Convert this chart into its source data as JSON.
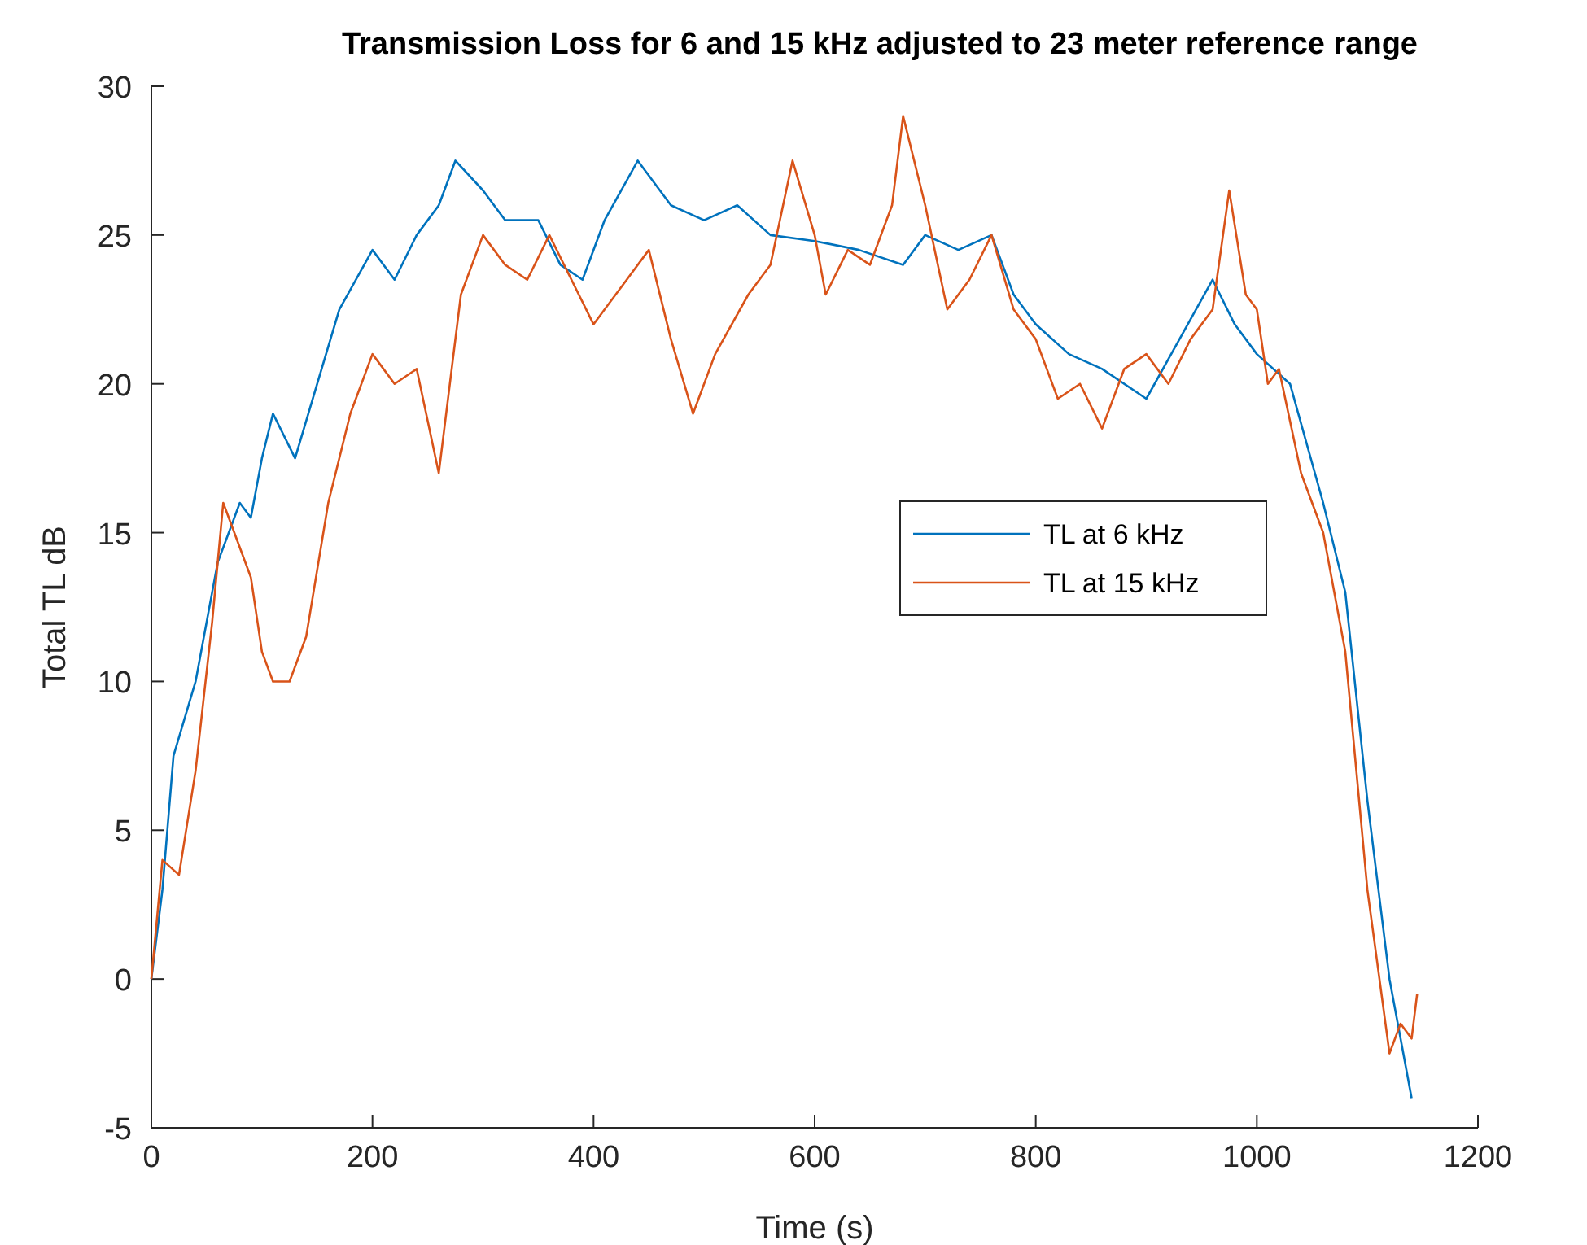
{
  "chart_data": {
    "type": "line",
    "title": "Transmission Loss for 6 and 15 kHz adjusted to 23 meter reference range",
    "xlabel": "Time (s)",
    "ylabel": "Total TL dB",
    "xlim": [
      0,
      1200
    ],
    "xticks": [
      0,
      200,
      400,
      600,
      800,
      1000,
      1200
    ],
    "ylim": [
      -5,
      30
    ],
    "yticks": [
      -5,
      0,
      5,
      10,
      15,
      20,
      25,
      30
    ],
    "grid": false,
    "legend": "right",
    "line_style": "solid",
    "marker": "none",
    "series": [
      {
        "name": "TL at 6 kHz",
        "color": "#0072bd",
        "x": [
          0,
          10,
          20,
          40,
          60,
          80,
          90,
          100,
          110,
          130,
          150,
          170,
          200,
          220,
          240,
          260,
          275,
          300,
          320,
          350,
          370,
          390,
          410,
          440,
          470,
          500,
          530,
          560,
          600,
          640,
          680,
          700,
          730,
          760,
          780,
          800,
          830,
          860,
          900,
          930,
          960,
          980,
          1000,
          1030,
          1060,
          1080,
          1100,
          1120,
          1140
        ],
        "values": [
          0,
          3,
          7.5,
          10,
          14,
          16,
          15.5,
          17.5,
          19,
          17.5,
          20,
          22.5,
          24.5,
          23.5,
          25,
          26,
          27.5,
          26.5,
          25.5,
          25.5,
          24,
          23.5,
          25.5,
          27.5,
          26,
          25.5,
          26,
          25,
          24.8,
          24.5,
          24,
          25,
          24.5,
          25,
          23,
          22,
          21,
          20.5,
          19.5,
          21.5,
          23.5,
          22,
          21,
          20,
          16,
          13,
          6,
          0,
          -4
        ]
      },
      {
        "name": "TL at 15 kHz",
        "color": "#d95319",
        "x": [
          0,
          10,
          25,
          40,
          55,
          65,
          75,
          90,
          100,
          110,
          125,
          140,
          160,
          180,
          200,
          220,
          240,
          260,
          280,
          300,
          320,
          340,
          360,
          380,
          400,
          430,
          450,
          470,
          490,
          510,
          540,
          560,
          580,
          600,
          610,
          630,
          650,
          670,
          680,
          700,
          720,
          740,
          760,
          780,
          800,
          820,
          840,
          860,
          880,
          900,
          920,
          940,
          960,
          975,
          990,
          1000,
          1010,
          1020,
          1040,
          1060,
          1080,
          1100,
          1120,
          1130,
          1140,
          1145
        ],
        "values": [
          0,
          4,
          3.5,
          7,
          12,
          16,
          15,
          13.5,
          11,
          10,
          10,
          11.5,
          16,
          19,
          21,
          20,
          20.5,
          17,
          23,
          25,
          24,
          23.5,
          25,
          23.5,
          22,
          23.5,
          24.5,
          21.5,
          19,
          21,
          23,
          24,
          27.5,
          25,
          23,
          24.5,
          24,
          26,
          29,
          26,
          22.5,
          23.5,
          25,
          22.5,
          21.5,
          19.5,
          20,
          18.5,
          20.5,
          21,
          20,
          21.5,
          22.5,
          26.5,
          23,
          22.5,
          20,
          20.5,
          17,
          15,
          11,
          3,
          -2.5,
          -1.5,
          -2,
          -0.5
        ]
      }
    ]
  }
}
